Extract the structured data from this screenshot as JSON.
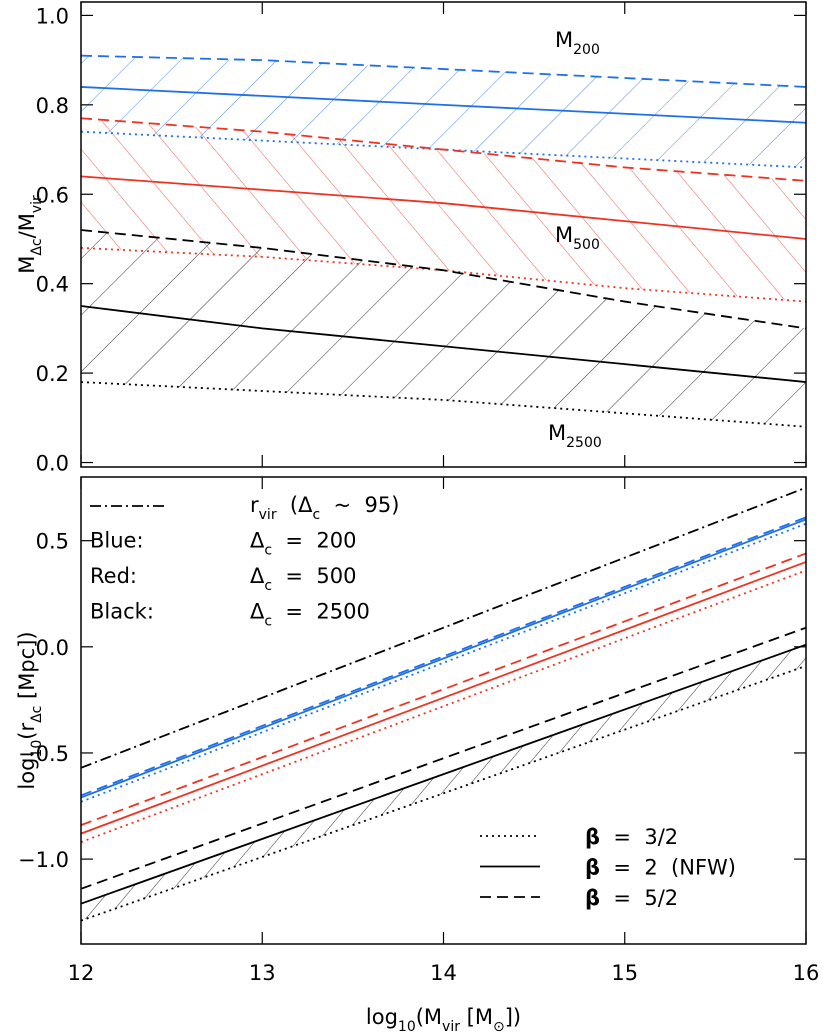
{
  "chart_data": [
    {
      "type": "line",
      "ylabel": [
        {
          "text": "M"
        },
        {
          "text": "Δc",
          "sub": true
        },
        {
          "text": "/M"
        },
        {
          "text": "vir",
          "sub": true
        }
      ],
      "x": [
        12,
        13,
        14,
        15,
        16
      ],
      "xlim": [
        12,
        16
      ],
      "xticks": [
        12,
        13,
        14,
        15,
        16
      ],
      "ylim": [
        -0.01,
        1.03
      ],
      "yticks": [
        {
          "value": 0,
          "label": "0.0"
        },
        0.2,
        0.4,
        0.6,
        0.8,
        {
          "value": 1,
          "label": "1.0"
        }
      ],
      "series": [
        {
          "color": "#1f6fe8",
          "style": "dashed",
          "values": [
            0.91,
            0.9,
            0.88,
            0.86,
            0.84
          ]
        },
        {
          "color": "#1f6fe8",
          "style": "solid",
          "values": [
            0.84,
            0.82,
            0.8,
            0.78,
            0.76
          ]
        },
        {
          "color": "#1f6fe8",
          "style": "dotted",
          "values": [
            0.74,
            0.72,
            0.7,
            0.68,
            0.66
          ]
        },
        {
          "color": "#ee3322",
          "style": "dashed",
          "values": [
            0.77,
            0.74,
            0.7,
            0.66,
            0.63
          ]
        },
        {
          "color": "#ee3322",
          "style": "solid",
          "values": [
            0.64,
            0.61,
            0.58,
            0.54,
            0.5
          ]
        },
        {
          "color": "#ee3322",
          "style": "dotted",
          "values": [
            0.48,
            0.46,
            0.43,
            0.39,
            0.36
          ]
        },
        {
          "color": "#000000",
          "style": "dashed",
          "values": [
            0.52,
            0.48,
            0.43,
            0.36,
            0.3
          ]
        },
        {
          "color": "#000000",
          "style": "solid",
          "values": [
            0.35,
            0.3,
            0.26,
            0.22,
            0.18
          ]
        },
        {
          "color": "#000000",
          "style": "dotted",
          "values": [
            0.18,
            0.16,
            0.14,
            0.11,
            0.08
          ]
        }
      ],
      "annotations": [
        [
          {
            "text": "M"
          },
          {
            "text": "200",
            "sub": true
          }
        ],
        [
          {
            "text": "M"
          },
          {
            "text": "500",
            "sub": true
          }
        ],
        [
          {
            "text": "M"
          },
          {
            "text": "2500",
            "sub": true
          }
        ]
      ]
    },
    {
      "type": "line",
      "xlabel": [
        {
          "text": "log"
        },
        {
          "text": "10",
          "sub": true
        },
        {
          "text": "(M"
        },
        {
          "text": "vir",
          "sub": true
        },
        {
          "text": " [M"
        },
        {
          "text": "⊙",
          "sub": true
        },
        {
          "text": "])"
        }
      ],
      "ylabel": [
        {
          "text": "log"
        },
        {
          "text": "10",
          "sub": true
        },
        {
          "text": "(r"
        },
        {
          "text": "Δc",
          "sub": true
        },
        {
          "text": " [Mpc])"
        }
      ],
      "x": [
        12,
        16
      ],
      "xlim": [
        12,
        16
      ],
      "xticks": [
        12,
        13,
        14,
        15,
        16
      ],
      "ylim": [
        -1.4,
        0.8
      ],
      "yticks": [
        {
          "value": -1,
          "label": "−1.0"
        },
        {
          "value": -0.5,
          "label": "−0.5"
        },
        {
          "value": 0,
          "label": "0.0"
        },
        0.5
      ],
      "series": [
        {
          "color": "#000000",
          "style": "dashdot",
          "values": [
            -0.57,
            0.75
          ]
        },
        {
          "color": "#1f6fe8",
          "style": "dashed",
          "values": [
            -0.7,
            0.61
          ]
        },
        {
          "color": "#1f6fe8",
          "style": "solid",
          "values": [
            -0.71,
            0.6
          ]
        },
        {
          "color": "#1f6fe8",
          "style": "dotted",
          "values": [
            -0.73,
            0.58
          ]
        },
        {
          "color": "#ee3322",
          "style": "dashed",
          "values": [
            -0.84,
            0.44
          ]
        },
        {
          "color": "#ee3322",
          "style": "solid",
          "values": [
            -0.88,
            0.4
          ]
        },
        {
          "color": "#ee3322",
          "style": "dotted",
          "values": [
            -0.92,
            0.36
          ]
        },
        {
          "color": "#000000",
          "style": "dashed",
          "values": [
            -1.14,
            0.09
          ]
        },
        {
          "color": "#000000",
          "style": "solid",
          "values": [
            -1.21,
            0.01
          ]
        },
        {
          "color": "#000000",
          "style": "dotted",
          "values": [
            -1.29,
            -0.09
          ]
        }
      ],
      "legend": [
        {
          "style": "dashdot",
          "color": "#000000",
          "label": [
            {
              "text": "r"
            },
            {
              "text": "vir",
              "sub": true
            },
            {
              "text": "  (Δ"
            },
            {
              "text": "c",
              "sub": true
            },
            {
              "text": "  ~  95)"
            }
          ]
        },
        {
          "color": "#1f6fe8",
          "label": [
            {
              "text": "Blue:"
            }
          ],
          "value": [
            {
              "text": "Δ"
            },
            {
              "text": "c",
              "sub": true
            },
            {
              "text": "  =  200"
            }
          ]
        },
        {
          "color": "#ee3322",
          "label": [
            {
              "text": "Red:"
            }
          ],
          "value": [
            {
              "text": "Δ"
            },
            {
              "text": "c",
              "sub": true
            },
            {
              "text": "  =  500"
            }
          ]
        },
        {
          "color": "#000000",
          "label": [
            {
              "text": "Black:"
            }
          ],
          "value": [
            {
              "text": "Δ"
            },
            {
              "text": "c",
              "sub": true
            },
            {
              "text": "  =  2500"
            }
          ]
        }
      ],
      "style_legend": [
        {
          "style": "dotted",
          "color": "#000000",
          "label": [
            {
              "text": "β"
            },
            {
              "text": "  =  3/2"
            }
          ]
        },
        {
          "style": "solid",
          "color": "#000000",
          "label": [
            {
              "text": "β"
            },
            {
              "text": "  =  2  (NFW)"
            }
          ]
        },
        {
          "style": "dashed",
          "color": "#000000",
          "label": [
            {
              "text": "β"
            },
            {
              "text": "  =  5/2"
            }
          ]
        }
      ]
    }
  ]
}
